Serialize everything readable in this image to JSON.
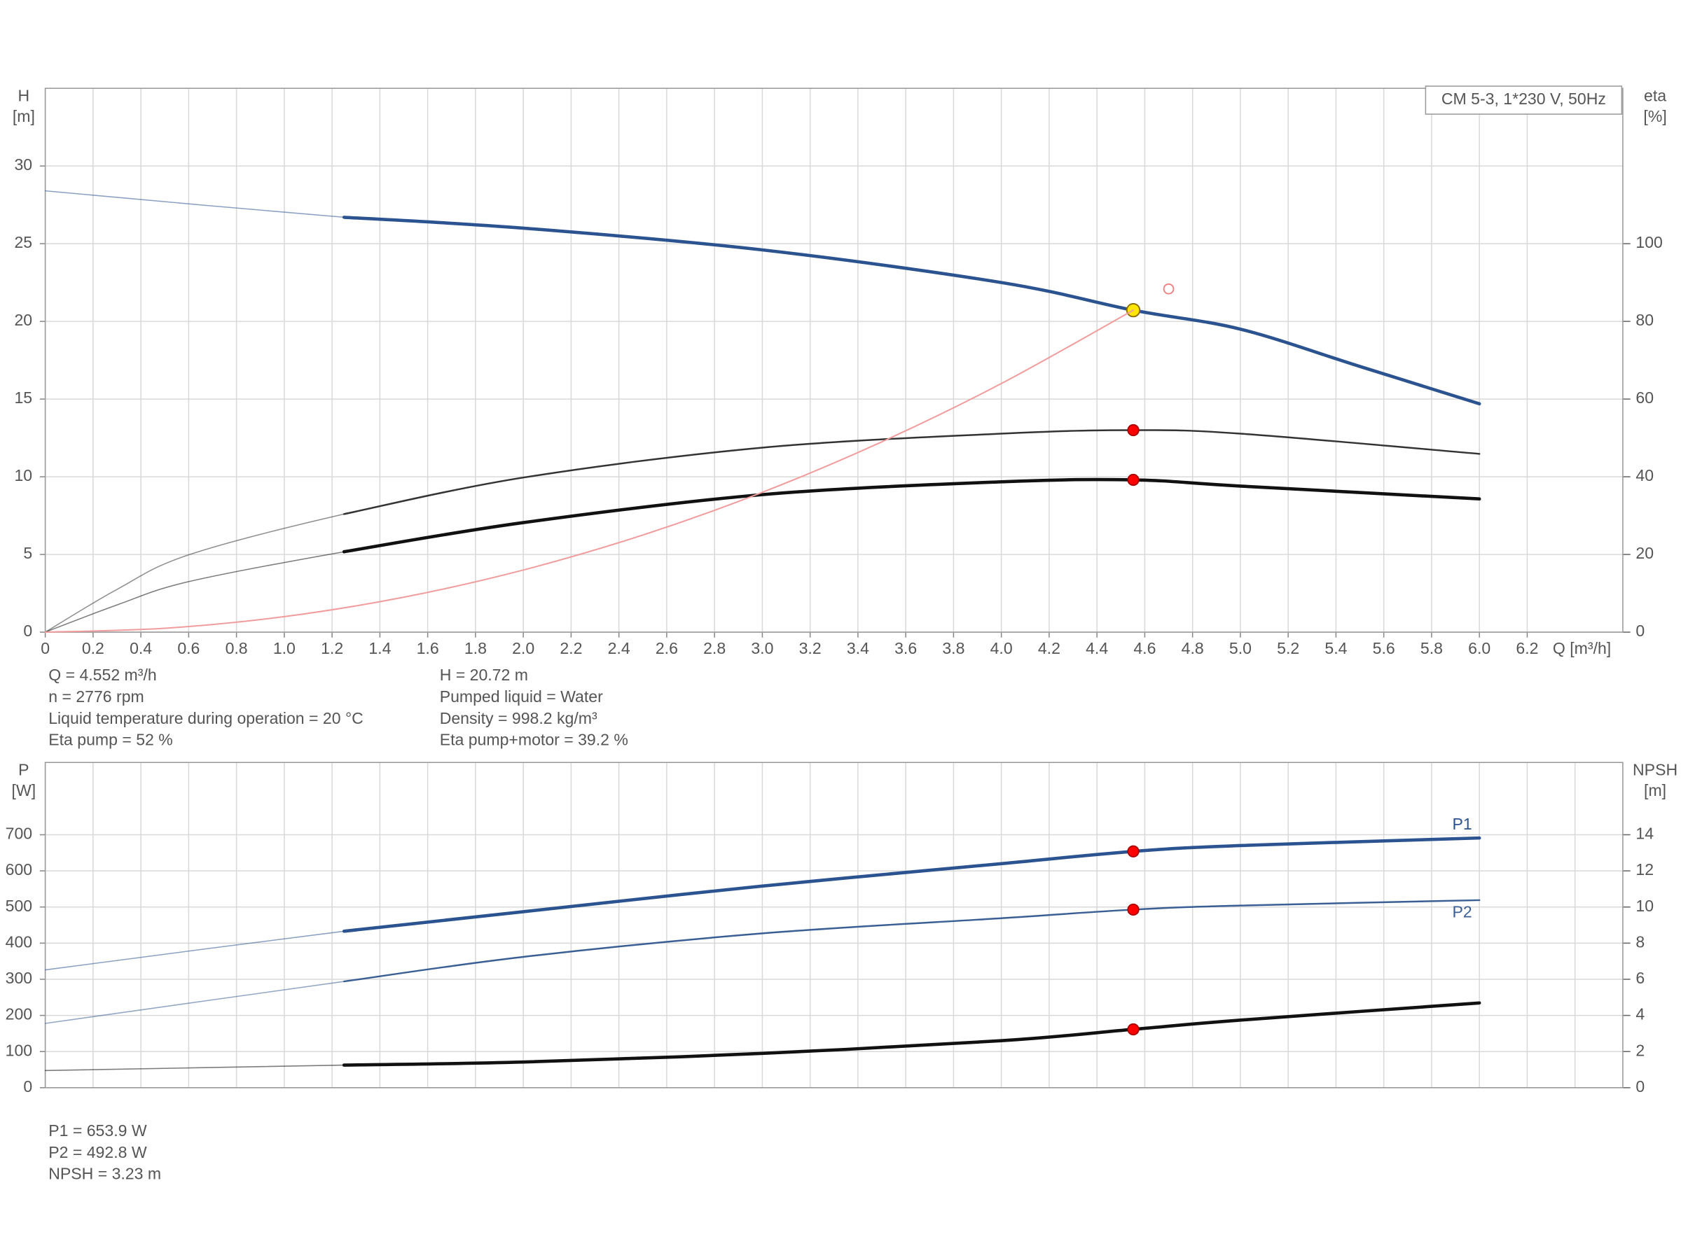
{
  "chart_data": [
    {
      "type": "line",
      "legend_text": "CM 5-3, 1*230 V, 50Hz",
      "y_title": [
        "H",
        "[m]"
      ],
      "y2_title": [
        "eta",
        "[%]"
      ],
      "x_title": "Q [m³/h]",
      "xlim": [
        0,
        6.6
      ],
      "xticks": [
        0,
        0.2,
        0.4,
        0.6,
        0.8,
        {
          "value": 1,
          "label": "1.0"
        },
        1.2,
        1.4,
        1.6,
        1.8,
        {
          "value": 2,
          "label": "2.0"
        },
        2.2,
        2.4,
        2.6,
        2.8,
        {
          "value": 3,
          "label": "3.0"
        },
        3.2,
        3.4,
        3.6,
        3.8,
        {
          "value": 4,
          "label": "4.0"
        },
        4.2,
        4.4,
        4.6,
        4.8,
        {
          "value": 5,
          "label": "5.0"
        },
        5.2,
        5.4,
        5.6,
        5.8,
        {
          "value": 6,
          "label": "6.0"
        },
        6.2
      ],
      "xtick_labels": true,
      "ylim": [
        0,
        35
      ],
      "yticks": [
        0,
        5,
        10,
        15,
        20,
        25,
        30
      ],
      "y2lim": [
        0,
        140
      ],
      "y2ticks": [
        0,
        20,
        40,
        60,
        80,
        100
      ],
      "grid": true,
      "curve_start": 1.25,
      "operating_x": 4.552,
      "series": [
        {
          "color": "#2b5390",
          "width": 3,
          "marker_color": "#ffe600",
          "marker_stroke": "#8a6a00",
          "x": [
            0,
            1.25,
            2,
            3,
            4,
            4.552,
            5,
            5.5,
            6
          ],
          "values": [
            28.4,
            26.7,
            26,
            24.6,
            22.5,
            20.72,
            19.5,
            17.1,
            14.7
          ]
        },
        {
          "color": "#333333",
          "width": 1.6,
          "axis": "y2",
          "marker_color": "#ff0000",
          "marker_stroke": "#aa0000",
          "x": [
            0,
            0.3,
            0.6,
            1.25,
            2,
            3,
            4,
            4.552,
            5,
            6
          ],
          "values": [
            0,
            11,
            19.9,
            30.4,
            39.8,
            47.5,
            51.1,
            52,
            51.1,
            45.9
          ]
        },
        {
          "color": "#111111",
          "width": 3,
          "axis": "y2",
          "marker_color": "#ff0000",
          "marker_stroke": "#aa0000",
          "x": [
            0,
            0.3,
            0.6,
            1.25,
            2,
            3,
            4,
            4.552,
            5,
            6
          ],
          "values": [
            0,
            7,
            13,
            20.7,
            28.2,
            35.4,
            38.7,
            39.2,
            37.6,
            34.3
          ]
        },
        {
          "color": "#f19c9c",
          "width": 1.3,
          "thick": false,
          "x": [
            0,
            0.5,
            1,
            1.5,
            2,
            2.5,
            3,
            3.5,
            4,
            4.552
          ],
          "values": [
            0,
            0.25,
            1,
            2.25,
            4,
            6.25,
            9,
            12.25,
            16,
            20.72
          ]
        }
      ],
      "extra_point": {
        "x": 4.7,
        "y": 22.09,
        "color": "#f08080"
      },
      "annotations": [
        [
          "Q = 4.552 m³/h",
          "n = 2776 rpm",
          "Liquid temperature during operation = 20 °C",
          "Eta pump = 52 %"
        ],
        [
          "H = 20.72 m",
          "Pumped liquid = Water",
          "Density = 998.2 kg/m³",
          "Eta pump+motor = 39.2 %"
        ]
      ]
    },
    {
      "type": "line",
      "y_title": [
        "P",
        "[W]"
      ],
      "y2_title": [
        "NPSH",
        "[m]"
      ],
      "xlim": [
        0,
        6.6
      ],
      "xticks": [
        0,
        0.2,
        0.4,
        0.6,
        0.8,
        1,
        1.2,
        1.4,
        1.6,
        1.8,
        2,
        2.2,
        2.4,
        2.6,
        2.8,
        3,
        3.2,
        3.4,
        3.6,
        3.8,
        4,
        4.2,
        4.4,
        4.6,
        4.8,
        5,
        5.2,
        5.4,
        5.6,
        5.8,
        6,
        6.2,
        6.4
      ],
      "xtick_labels": false,
      "ylim": [
        0,
        900
      ],
      "yticks": [
        0,
        100,
        200,
        300,
        400,
        500,
        600,
        700
      ],
      "y2lim": [
        0,
        18
      ],
      "y2ticks": [
        0,
        2,
        4,
        6,
        8,
        10,
        12,
        14
      ],
      "grid": true,
      "curve_start": 1.25,
      "operating_x": 4.552,
      "series": [
        {
          "name": "P1",
          "label_position": "above",
          "color": "#2b5390",
          "width": 3,
          "marker_color": "#ff0000",
          "marker_stroke": "#aa0000",
          "x": [
            0,
            1.25,
            2,
            3,
            4,
            4.552,
            5,
            6
          ],
          "values": [
            326,
            433,
            487,
            558,
            620,
            653.9,
            670,
            691
          ]
        },
        {
          "name": "P2",
          "label_position": "below",
          "color": "#3a5f95",
          "width": 1.6,
          "marker_color": "#ff0000",
          "marker_stroke": "#aa0000",
          "x": [
            0,
            1.25,
            2,
            3,
            4,
            4.552,
            5,
            6
          ],
          "values": [
            178,
            294,
            362,
            427,
            469,
            492.8,
            504,
            519
          ]
        },
        {
          "color": "#111111",
          "width": 3,
          "axis": "y2",
          "marker_color": "#ff0000",
          "marker_stroke": "#aa0000",
          "x": [
            0,
            1.25,
            2,
            3,
            4,
            4.552,
            5,
            6
          ],
          "values": [
            0.95,
            1.25,
            1.42,
            1.9,
            2.6,
            3.23,
            3.74,
            4.69
          ]
        }
      ],
      "annotations": [
        [
          "P1 = 653.9 W",
          "P2 = 492.8 W",
          "NPSH = 3.23 m"
        ]
      ]
    }
  ]
}
